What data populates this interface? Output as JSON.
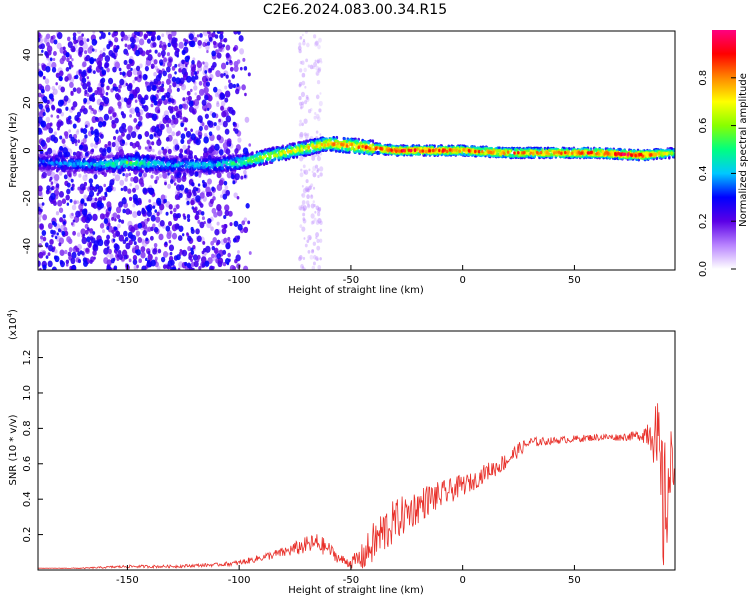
{
  "title": "C2E6.2024.083.00.34.R15",
  "colors": {
    "snr_line": "#e8302a",
    "colormap": [
      "#ffffff",
      "#b883ff",
      "#5b00e6",
      "#0000ff",
      "#00c8ff",
      "#00ff80",
      "#88ff00",
      "#ffff00",
      "#ff8800",
      "#ff0000",
      "#ff0080"
    ]
  },
  "chart_data": [
    {
      "type": "heatmap",
      "xlabel": "Height of straight line (km)",
      "ylabel": "Frequency (Hz)",
      "xlim": [
        -190,
        95
      ],
      "ylim": [
        -50,
        50
      ],
      "xticks": [
        -150,
        -100,
        -50,
        0,
        50
      ],
      "xtick_labels": [
        "-150",
        "-100",
        "-50",
        "0",
        "50"
      ],
      "yticks": [
        -40,
        -20,
        0,
        20,
        40
      ],
      "ytick_labels": [
        "-40",
        "-20",
        "0",
        "20",
        "40"
      ],
      "ridge": {
        "x": [
          -190,
          -160,
          -150,
          -130,
          -110,
          -100,
          -90,
          -80,
          -70,
          -60,
          -50,
          -40,
          -30,
          -20,
          -10,
          0,
          20,
          40,
          60,
          80,
          95
        ],
        "freq": [
          -5,
          -6,
          -5,
          -6,
          -6,
          -5,
          -3,
          -1,
          1,
          3,
          2,
          1,
          0,
          0,
          0,
          0,
          -1,
          -1,
          -1,
          -2,
          -1
        ],
        "peak_amplitude": [
          0.35,
          0.45,
          0.55,
          0.4,
          0.45,
          0.55,
          0.65,
          0.7,
          0.75,
          0.8,
          0.85,
          0.85,
          0.9,
          0.9,
          0.9,
          0.85,
          0.85,
          0.85,
          0.9,
          0.95,
          0.6
        ]
      },
      "colorbar": {
        "label": "Normalized spectral amplitude",
        "range": [
          0,
          1
        ],
        "ticks": [
          0.0,
          0.2,
          0.4,
          0.6,
          0.8
        ],
        "tick_labels": [
          "0.0",
          "0.2",
          "0.4",
          "0.6",
          "0.8"
        ]
      }
    },
    {
      "type": "line",
      "xlabel": "Height of straight line (km)",
      "ylabel": "SNR (10 * v/v)",
      "y_scale_label": "(x10",
      "y_scale_exp": "4",
      "y_scale_close": ")",
      "xlim": [
        -190,
        95
      ],
      "ylim": [
        0,
        1.35
      ],
      "xticks": [
        -150,
        -100,
        -50,
        0,
        50
      ],
      "xtick_labels": [
        "-150",
        "-100",
        "-50",
        "0",
        "50"
      ],
      "yticks": [
        0.2,
        0.4,
        0.6,
        0.8,
        1.0,
        1.2
      ],
      "ytick_labels": [
        "0.2",
        "0.4",
        "0.6",
        "0.8",
        "1.0",
        "1.2"
      ],
      "series": [
        {
          "x": [
            -190,
            -170,
            -150,
            -130,
            -110,
            -100,
            -90,
            -80,
            -70,
            -65,
            -60,
            -55,
            -50,
            -45,
            -40,
            -35,
            -30,
            -25,
            -20,
            -15,
            -10,
            -5,
            0,
            5,
            10,
            15,
            20,
            25,
            30,
            40,
            50,
            60,
            70,
            80,
            85,
            88,
            90,
            92,
            95
          ],
          "y": [
            0.01,
            0.01,
            0.02,
            0.02,
            0.03,
            0.04,
            0.07,
            0.1,
            0.14,
            0.15,
            0.12,
            0.06,
            0.04,
            0.07,
            0.15,
            0.22,
            0.28,
            0.32,
            0.36,
            0.4,
            0.42,
            0.45,
            0.48,
            0.5,
            0.55,
            0.58,
            0.62,
            0.68,
            0.72,
            0.73,
            0.74,
            0.75,
            0.75,
            0.76,
            0.8,
            0.6,
            0.3,
            0.5,
            0.6
          ],
          "noise": [
            0.0,
            0.003,
            0.008,
            0.008,
            0.01,
            0.015,
            0.02,
            0.03,
            0.05,
            0.06,
            0.04,
            0.03,
            0.03,
            0.08,
            0.12,
            0.14,
            0.12,
            0.11,
            0.1,
            0.09,
            0.08,
            0.07,
            0.06,
            0.05,
            0.05,
            0.05,
            0.05,
            0.04,
            0.03,
            0.02,
            0.02,
            0.02,
            0.02,
            0.03,
            0.15,
            0.35,
            0.4,
            0.35,
            0.15
          ]
        }
      ]
    }
  ]
}
